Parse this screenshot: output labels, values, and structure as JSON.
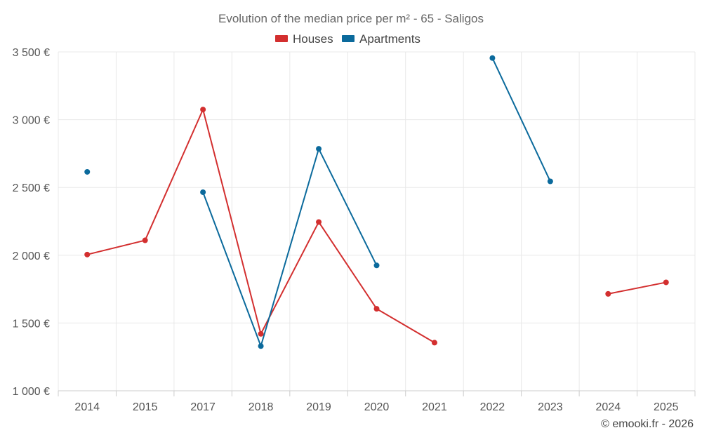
{
  "chart_data": {
    "type": "line",
    "title": "Evolution of the median price per m² - 65 - Saligos",
    "categories": [
      "2014",
      "2015",
      "2017",
      "2018",
      "2019",
      "2020",
      "2021",
      "2022",
      "2023",
      "2024",
      "2025"
    ],
    "series": [
      {
        "name": "Houses",
        "color": "#d32f2f",
        "values": [
          2005,
          2110,
          3075,
          1420,
          2245,
          1605,
          1355,
          null,
          null,
          1715,
          1800
        ]
      },
      {
        "name": "Apartments",
        "color": "#0b6a9c",
        "values": [
          2615,
          null,
          2465,
          1330,
          2785,
          1925,
          null,
          3455,
          2545,
          null,
          null
        ]
      }
    ],
    "yticks": [
      1000,
      1500,
      2000,
      2500,
      3000,
      3500
    ],
    "ytick_labels": [
      "1 000 €",
      "1 500 €",
      "2 000 €",
      "2 500 €",
      "3 000 €",
      "3 500 €"
    ],
    "ylim": [
      1000,
      3500
    ],
    "xlabel": "",
    "ylabel": "",
    "legend_position": "top-center",
    "grid": true
  },
  "credit": "© emooki.fr - 2026"
}
